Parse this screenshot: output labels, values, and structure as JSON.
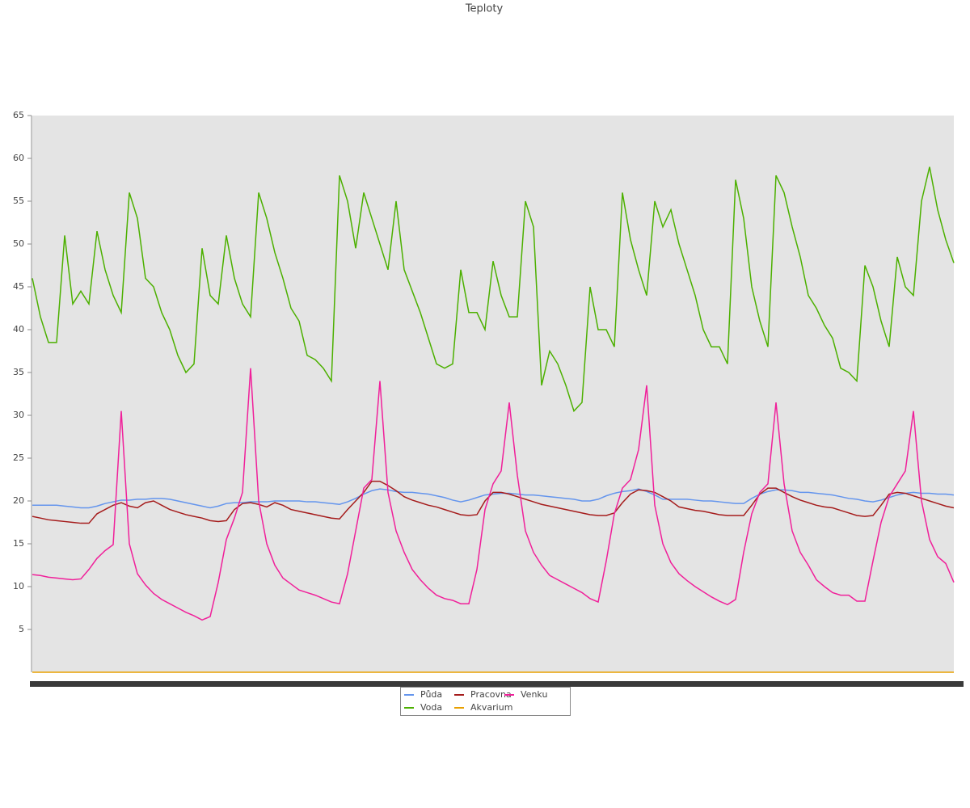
{
  "chart_data": {
    "type": "line",
    "title": "Teploty",
    "categories": [
      null,
      null,
      null,
      null,
      null,
      null,
      null,
      null,
      null,
      null,
      null,
      null,
      null,
      null,
      null,
      null,
      null,
      null,
      null,
      null,
      null,
      null,
      null,
      null,
      null,
      null,
      null,
      null,
      null,
      null,
      null,
      null,
      null,
      null,
      null,
      null,
      null,
      null,
      null,
      null,
      null,
      null,
      null,
      null,
      null,
      null,
      null,
      null,
      null,
      null,
      null,
      null,
      null,
      null,
      null,
      null,
      null,
      null,
      null,
      null,
      null,
      null,
      null,
      null,
      null,
      null,
      null,
      null,
      null,
      null,
      null,
      null,
      null,
      null,
      null,
      null,
      null,
      null,
      null,
      null,
      null,
      null,
      null,
      null,
      null,
      null,
      null,
      null,
      null,
      null,
      null,
      null,
      null,
      null,
      null,
      null,
      null,
      null,
      null,
      null,
      null,
      null,
      null,
      null,
      null,
      null,
      null,
      null,
      null,
      null,
      null,
      null,
      null,
      null,
      null
    ],
    "ylim": [
      0,
      65
    ],
    "yticks": [
      5,
      10,
      15,
      20,
      25,
      30,
      35,
      40,
      45,
      50,
      55,
      60,
      65
    ],
    "grid": false,
    "legend": "bottom",
    "series": [
      {
        "name": "Půda",
        "color": "#6495ed",
        "values": [
          19.5,
          19.5,
          19.5,
          19.5,
          19.4,
          19.3,
          19.2,
          19.2,
          19.4,
          19.7,
          19.9,
          20.1,
          20.1,
          20.2,
          20.2,
          20.3,
          20.3,
          20.2,
          20.0,
          19.8,
          19.6,
          19.4,
          19.2,
          19.4,
          19.7,
          19.8,
          19.8,
          19.9,
          19.9,
          19.9,
          20.0,
          20.0,
          20.0,
          20.0,
          19.9,
          19.9,
          19.8,
          19.7,
          19.6,
          19.9,
          20.3,
          20.8,
          21.2,
          21.4,
          21.3,
          21.1,
          21.0,
          21.0,
          20.9,
          20.8,
          20.6,
          20.4,
          20.1,
          19.9,
          20.1,
          20.4,
          20.7,
          20.8,
          20.9,
          20.9,
          20.8,
          20.7,
          20.7,
          20.6,
          20.5,
          20.4,
          20.3,
          20.2,
          20.0,
          20.0,
          20.2,
          20.6,
          20.9,
          21.1,
          21.2,
          21.4,
          21.1,
          20.7,
          20.2,
          20.2,
          20.2,
          20.2,
          20.1,
          20.0,
          20.0,
          19.9,
          19.8,
          19.7,
          19.7,
          20.3,
          20.8,
          21.1,
          21.3,
          21.3,
          21.2,
          21.0,
          21.0,
          20.9,
          20.8,
          20.7,
          20.5,
          20.3,
          20.2,
          20.0,
          19.9,
          20.1,
          20.4,
          20.7,
          20.9,
          21.0,
          20.9,
          20.9,
          20.8,
          20.8,
          20.7
        ]
      },
      {
        "name": "Voda",
        "color": "#4cb000",
        "values": [
          46,
          41.5,
          38.5,
          38.5,
          51,
          43,
          44.5,
          43,
          51.5,
          47,
          44,
          42,
          56,
          53,
          46,
          45,
          42,
          40,
          37,
          35,
          36,
          49.5,
          44,
          43,
          51,
          46,
          43,
          41.5,
          56,
          53,
          49,
          46,
          42.5,
          41,
          37,
          36.5,
          35.5,
          34,
          58,
          55,
          49.5,
          56,
          53,
          50,
          47,
          55,
          47,
          44.5,
          42,
          39,
          36,
          35.5,
          36,
          47,
          42,
          42,
          40,
          48,
          44,
          41.5,
          41.5,
          55,
          52,
          33.5,
          37.5,
          36,
          33.5,
          30.5,
          31.5,
          45,
          40,
          40,
          38,
          56,
          50.5,
          47,
          44,
          55,
          52,
          54,
          50,
          47,
          44,
          40,
          38,
          38,
          36,
          57.5,
          53,
          45,
          41,
          38,
          58,
          56,
          52,
          48.5,
          44,
          42.5,
          40.5,
          39,
          35.5,
          35,
          34,
          47.5,
          45,
          41,
          38,
          48.5,
          45,
          44,
          55,
          59,
          54,
          50.5,
          47.8
        ]
      },
      {
        "name": "Pracovna",
        "color": "#a51c1c",
        "values": [
          18.2,
          18.0,
          17.8,
          17.7,
          17.6,
          17.5,
          17.4,
          17.4,
          18.5,
          19.0,
          19.5,
          19.8,
          19.4,
          19.2,
          19.8,
          20.0,
          19.5,
          19.0,
          18.7,
          18.4,
          18.2,
          18.0,
          17.7,
          17.6,
          17.7,
          19.0,
          19.7,
          19.8,
          19.6,
          19.3,
          19.8,
          19.5,
          19.0,
          18.8,
          18.6,
          18.4,
          18.2,
          18.0,
          17.9,
          19.0,
          20.0,
          21.0,
          22.3,
          22.3,
          21.8,
          21.2,
          20.5,
          20.1,
          19.8,
          19.5,
          19.3,
          19.0,
          18.7,
          18.4,
          18.3,
          18.4,
          20.0,
          21.0,
          21.0,
          20.8,
          20.5,
          20.2,
          19.9,
          19.6,
          19.4,
          19.2,
          19.0,
          18.8,
          18.6,
          18.4,
          18.3,
          18.3,
          18.6,
          19.8,
          20.8,
          21.3,
          21.2,
          21.0,
          20.5,
          20.0,
          19.3,
          19.1,
          18.9,
          18.8,
          18.6,
          18.4,
          18.3,
          18.3,
          18.3,
          19.5,
          20.8,
          21.5,
          21.5,
          21.0,
          20.5,
          20.1,
          19.8,
          19.5,
          19.3,
          19.2,
          18.9,
          18.6,
          18.3,
          18.2,
          18.3,
          19.5,
          20.8,
          21.0,
          20.9,
          20.6,
          20.3,
          20.0,
          19.7,
          19.4,
          19.2
        ]
      },
      {
        "name": "Akvarium",
        "color": "#e8a000",
        "values": [
          0,
          0,
          0,
          0,
          0,
          0,
          0,
          0,
          0,
          0,
          0,
          0,
          0,
          0,
          0,
          0,
          0,
          0,
          0,
          0,
          0,
          0,
          0,
          0,
          0,
          0,
          0,
          0,
          0,
          0,
          0,
          0,
          0,
          0,
          0,
          0,
          0,
          0,
          0,
          0,
          0,
          0,
          0,
          0,
          0,
          0,
          0,
          0,
          0,
          0,
          0,
          0,
          0,
          0,
          0,
          0,
          0,
          0,
          0,
          0,
          0,
          0,
          0,
          0,
          0,
          0,
          0,
          0,
          0,
          0,
          0,
          0,
          0,
          0,
          0,
          0,
          0,
          0,
          0,
          0,
          0,
          0,
          0,
          0,
          0,
          0,
          0,
          0,
          0,
          0,
          0,
          0,
          0,
          0,
          0,
          0,
          0,
          0,
          0,
          0,
          0,
          0,
          0,
          0,
          0,
          0,
          0,
          0,
          0,
          0,
          0,
          0,
          0,
          0,
          0
        ]
      },
      {
        "name": "Venku",
        "color": "#f0209a",
        "values": [
          11.4,
          11.3,
          11.1,
          11.0,
          10.9,
          10.8,
          10.9,
          12.0,
          13.3,
          14.2,
          14.9,
          30.5,
          15,
          11.5,
          10.2,
          9.2,
          8.5,
          8.0,
          7.5,
          7.0,
          6.6,
          6.1,
          6.5,
          10.5,
          15.5,
          18,
          21,
          35.5,
          20,
          15,
          12.5,
          11,
          10.3,
          9.6,
          9.3,
          9.0,
          8.6,
          8.2,
          8.0,
          11.5,
          16.5,
          21.5,
          22.5,
          34,
          21,
          16.5,
          14,
          12,
          10.8,
          9.8,
          9.0,
          8.6,
          8.4,
          8.0,
          8.0,
          12,
          19,
          22,
          23.5,
          31.5,
          23,
          16.5,
          14,
          12.5,
          11.3,
          10.8,
          10.3,
          9.8,
          9.3,
          8.6,
          8.2,
          13,
          18.5,
          21.5,
          22.5,
          26,
          33.5,
          19.5,
          15,
          12.8,
          11.5,
          10.7,
          10.0,
          9.4,
          8.8,
          8.3,
          7.9,
          8.5,
          14,
          18.5,
          21,
          22,
          31.5,
          22,
          16.5,
          14,
          12.5,
          10.8,
          10.0,
          9.3,
          9.0,
          9.0,
          8.3,
          8.3,
          13,
          17.5,
          20.5,
          22,
          23.5,
          30.5,
          20,
          15.5,
          13.5,
          12.7,
          10.5
        ]
      }
    ]
  }
}
